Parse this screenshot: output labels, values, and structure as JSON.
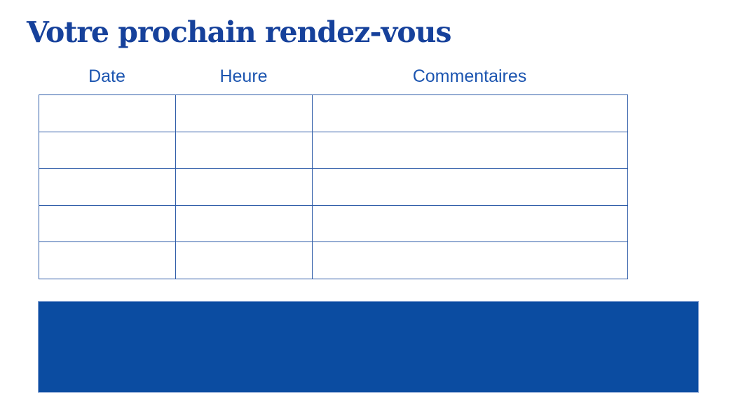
{
  "page": {
    "title": "Votre prochain rendez-vous"
  },
  "colors": {
    "title-color": "#16419b",
    "header-color": "#1c55b0",
    "border-color": "#2e5ca8",
    "block-fill": "#0b4ca1",
    "block-edge": "#8aa6d4",
    "page-bg": "#ffffff"
  },
  "table": {
    "columns": [
      {
        "label": "Date"
      },
      {
        "label": "Heure"
      },
      {
        "label": "Commentaires"
      }
    ],
    "rows": [
      {
        "cells": [
          "",
          "",
          ""
        ]
      },
      {
        "cells": [
          "",
          "",
          ""
        ]
      },
      {
        "cells": [
          "",
          "",
          ""
        ]
      },
      {
        "cells": [
          "",
          "",
          ""
        ]
      },
      {
        "cells": [
          "",
          "",
          ""
        ]
      }
    ]
  },
  "footer_block": {
    "content": ""
  }
}
